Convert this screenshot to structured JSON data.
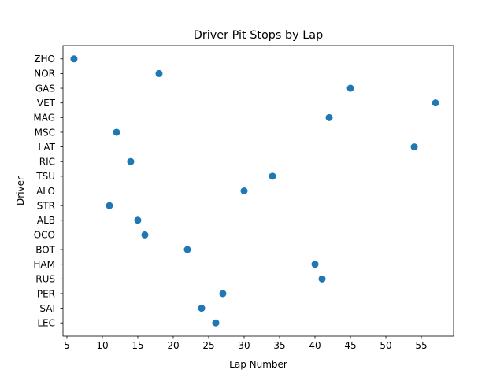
{
  "chart_data": {
    "type": "scatter",
    "title": "Driver Pit Stops by Lap",
    "xlabel": "Lap Number",
    "ylabel": "Driver",
    "xlim": [
      4.45,
      59.55
    ],
    "xticks": [
      5,
      10,
      15,
      20,
      25,
      30,
      35,
      40,
      45,
      50,
      55
    ],
    "categories": [
      "LEC",
      "SAI",
      "PER",
      "RUS",
      "HAM",
      "BOT",
      "OCO",
      "ALB",
      "STR",
      "ALO",
      "TSU",
      "RIC",
      "LAT",
      "MSC",
      "MAG",
      "VET",
      "GAS",
      "NOR",
      "ZHO"
    ],
    "grid": false,
    "marker_color": "#1f77b4",
    "points": [
      {
        "driver": "LEC",
        "lap": 26
      },
      {
        "driver": "SAI",
        "lap": 24
      },
      {
        "driver": "PER",
        "lap": 27
      },
      {
        "driver": "RUS",
        "lap": 41
      },
      {
        "driver": "HAM",
        "lap": 40
      },
      {
        "driver": "BOT",
        "lap": 22
      },
      {
        "driver": "OCO",
        "lap": 16
      },
      {
        "driver": "ALB",
        "lap": 15
      },
      {
        "driver": "STR",
        "lap": 11
      },
      {
        "driver": "ALO",
        "lap": 30
      },
      {
        "driver": "TSU",
        "lap": 34
      },
      {
        "driver": "RIC",
        "lap": 14
      },
      {
        "driver": "LAT",
        "lap": 54
      },
      {
        "driver": "MSC",
        "lap": 12
      },
      {
        "driver": "MAG",
        "lap": 42
      },
      {
        "driver": "VET",
        "lap": 57
      },
      {
        "driver": "GAS",
        "lap": 45
      },
      {
        "driver": "NOR",
        "lap": 18
      },
      {
        "driver": "ZHO",
        "lap": 6
      }
    ]
  }
}
